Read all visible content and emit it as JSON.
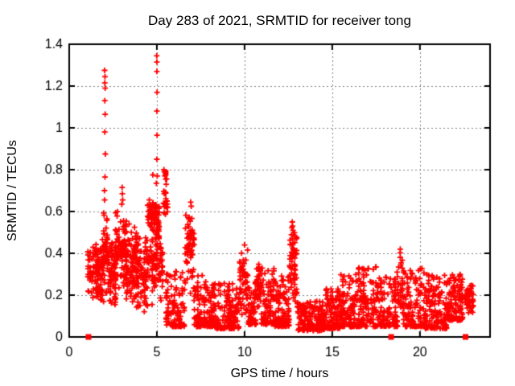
{
  "chart_data": {
    "type": "scatter",
    "title": "Day 283 of 2021, SRMTID for receiver tong",
    "xlabel": "GPS time / hours",
    "ylabel": "SRMTID / TECUs",
    "xlim": [
      0,
      24
    ],
    "ylim": [
      0,
      1.4
    ],
    "xticks": [
      0,
      5,
      10,
      15,
      20
    ],
    "xtick_labels": [
      "0",
      "5",
      "10",
      "15",
      "20"
    ],
    "yticks": [
      0,
      0.2,
      0.4,
      0.6,
      0.8,
      1.0,
      1.2,
      1.4
    ],
    "ytick_labels": [
      "0",
      "0.2",
      "0.4",
      "0.6",
      "0.8",
      "1",
      "1.2",
      "1.4"
    ],
    "grid": true,
    "legend": "none",
    "marker": "plus",
    "marker_color": "#ff0000",
    "grid_color": "#808080",
    "axis_color": "#000000",
    "background_color": "#ffffff",
    "outlier_points": [
      [
        2.02,
        1.275
      ],
      [
        2.04,
        1.245
      ],
      [
        2.03,
        1.215
      ],
      [
        2.05,
        1.19
      ],
      [
        2.03,
        1.13
      ],
      [
        2.05,
        1.065
      ],
      [
        2.03,
        0.98
      ],
      [
        2.06,
        0.875
      ],
      [
        2.04,
        0.765
      ],
      [
        2.01,
        0.7
      ],
      [
        2.02,
        0.655
      ],
      [
        4.99,
        1.345
      ],
      [
        5.0,
        1.315
      ],
      [
        5.0,
        1.27
      ],
      [
        5.01,
        1.17
      ],
      [
        5.0,
        1.08
      ],
      [
        5.01,
        0.965
      ],
      [
        5.0,
        0.85
      ],
      [
        5.02,
        0.77
      ],
      [
        4.97,
        0.735
      ],
      [
        4.77,
        0.775
      ],
      [
        5.4,
        0.8
      ],
      [
        5.43,
        0.79
      ],
      [
        5.46,
        0.77
      ],
      [
        5.5,
        0.755
      ],
      [
        5.53,
        0.73
      ],
      [
        5.56,
        0.755
      ],
      [
        5.5,
        0.69
      ],
      [
        3.02,
        0.715
      ],
      [
        3.03,
        0.685
      ],
      [
        3.05,
        0.655
      ],
      [
        3.0,
        0.635
      ],
      [
        6.93,
        0.645
      ],
      [
        6.96,
        0.625
      ],
      [
        12.72,
        0.55
      ],
      [
        12.74,
        0.53
      ],
      [
        12.76,
        0.51
      ],
      [
        12.78,
        0.49
      ],
      [
        12.73,
        0.47
      ],
      [
        12.77,
        0.45
      ],
      [
        12.8,
        0.42
      ],
      [
        10.0,
        0.44
      ],
      [
        18.88,
        0.42
      ]
    ],
    "square_markers": [
      [
        1.1,
        0.0
      ],
      [
        5.5,
        0.785
      ],
      [
        18.36,
        0.0
      ],
      [
        22.6,
        0.0
      ]
    ],
    "density_bands": [
      [
        1.05,
        1.5,
        0.17,
        0.45,
        40,
        "mid"
      ],
      [
        1.5,
        2.0,
        0.15,
        0.47,
        85,
        "mid"
      ],
      [
        1.95,
        2.2,
        0.2,
        0.62,
        45,
        "mid"
      ],
      [
        2.2,
        2.65,
        0.15,
        0.48,
        70,
        "mid"
      ],
      [
        2.6,
        3.25,
        0.17,
        0.63,
        95,
        "mid"
      ],
      [
        3.2,
        3.85,
        0.12,
        0.57,
        95,
        "mid"
      ],
      [
        3.8,
        4.5,
        0.09,
        0.52,
        90,
        "mid"
      ],
      [
        4.45,
        4.92,
        0.5,
        0.67,
        45,
        "mid"
      ],
      [
        4.5,
        5.35,
        0.15,
        0.55,
        85,
        "mid"
      ],
      [
        4.9,
        5.15,
        0.45,
        0.66,
        30,
        "mid"
      ],
      [
        5.35,
        5.65,
        0.55,
        0.72,
        18,
        "mid"
      ],
      [
        5.5,
        6.6,
        0.05,
        0.32,
        110,
        "low"
      ],
      [
        6.6,
        7.15,
        0.18,
        0.63,
        65,
        "mid"
      ],
      [
        7.1,
        8.3,
        0.05,
        0.3,
        130,
        "low"
      ],
      [
        8.3,
        9.7,
        0.04,
        0.26,
        140,
        "low"
      ],
      [
        9.7,
        10.2,
        0.08,
        0.42,
        55,
        "mid"
      ],
      [
        10.2,
        10.65,
        0.06,
        0.24,
        55,
        "low"
      ],
      [
        10.6,
        10.95,
        0.1,
        0.37,
        40,
        "mid"
      ],
      [
        10.95,
        11.7,
        0.06,
        0.33,
        85,
        "low"
      ],
      [
        11.7,
        12.55,
        0.05,
        0.3,
        100,
        "low"
      ],
      [
        12.55,
        13.0,
        0.12,
        0.55,
        55,
        "mid"
      ],
      [
        13.0,
        14.6,
        0.03,
        0.17,
        170,
        "low"
      ],
      [
        14.6,
        15.45,
        0.04,
        0.23,
        95,
        "low"
      ],
      [
        15.45,
        16.3,
        0.05,
        0.3,
        95,
        "low"
      ],
      [
        16.3,
        17.55,
        0.05,
        0.34,
        125,
        "low"
      ],
      [
        17.55,
        18.75,
        0.05,
        0.31,
        115,
        "low"
      ],
      [
        18.75,
        19.05,
        0.1,
        0.42,
        30,
        "mid"
      ],
      [
        19.05,
        20.25,
        0.05,
        0.33,
        115,
        "low"
      ],
      [
        20.25,
        21.55,
        0.04,
        0.3,
        135,
        "low"
      ],
      [
        21.55,
        22.45,
        0.08,
        0.3,
        120,
        "low"
      ],
      [
        22.55,
        23.05,
        0.1,
        0.28,
        45,
        "mid"
      ]
    ]
  }
}
